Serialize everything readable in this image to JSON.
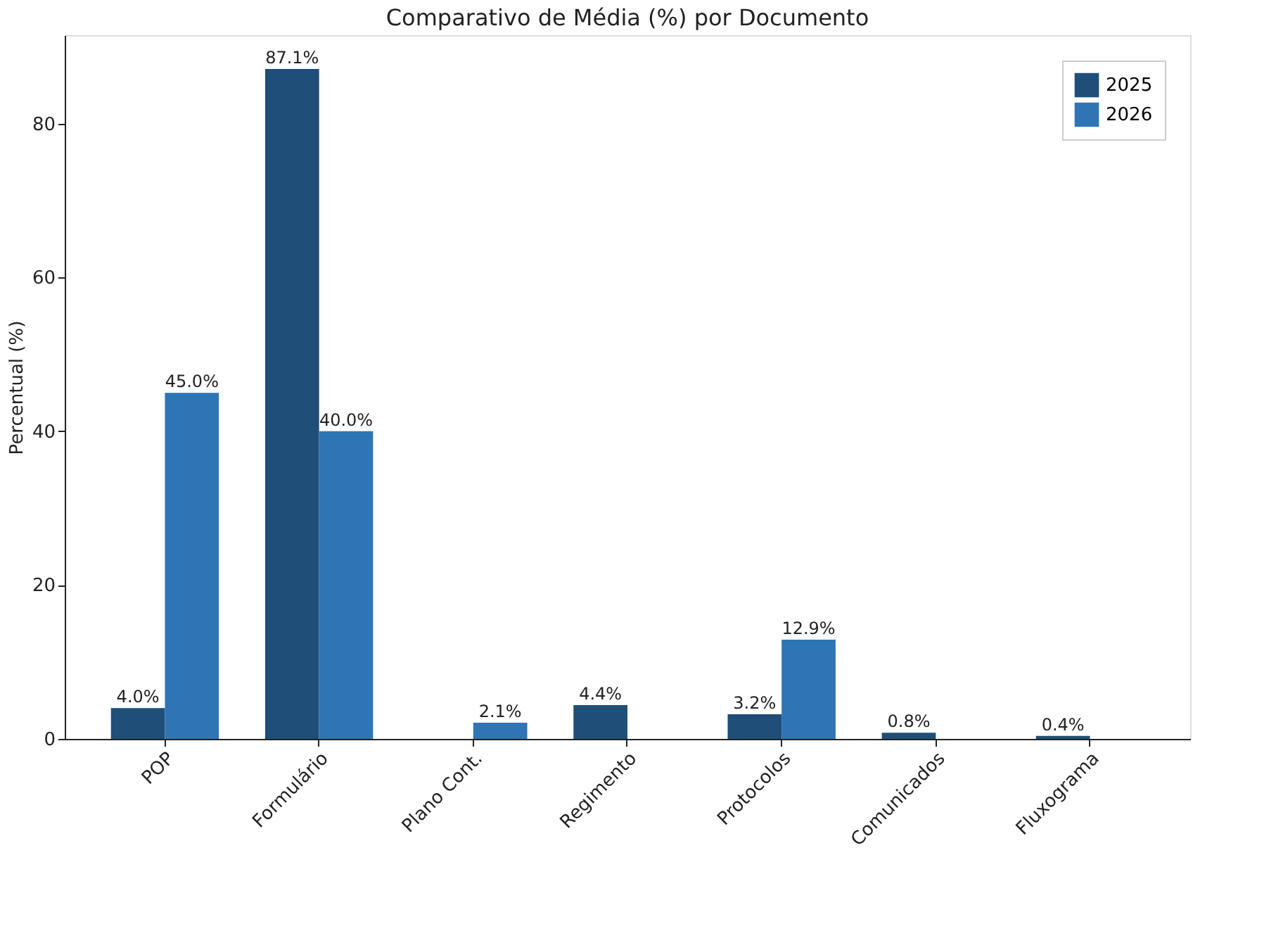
{
  "chart_data": {
    "type": "bar",
    "title": "Comparativo de Média (%) por Documento",
    "ylabel": "Percentual (%)",
    "categories": [
      "POP",
      "Formulário",
      "Plano Cont.",
      "Regimento",
      "Protocolos",
      "Comunicados",
      "Fluxograma"
    ],
    "series": [
      {
        "name": "2025",
        "color": "#1f4e79",
        "values": [
          4.0,
          87.1,
          null,
          4.4,
          3.2,
          0.8,
          0.4
        ],
        "value_labels": [
          "4.0%",
          "87.1%",
          null,
          "4.4%",
          "3.2%",
          "0.8%",
          "0.4%"
        ]
      },
      {
        "name": "2026",
        "color": "#2e75b6",
        "values": [
          45.0,
          40.0,
          2.1,
          null,
          12.9,
          null,
          null
        ],
        "value_labels": [
          "45.0%",
          "40.0%",
          "2.1%",
          null,
          "12.9%",
          null,
          null
        ]
      }
    ],
    "ylim": [
      0,
      91.5
    ],
    "yticks": [
      0,
      20,
      40,
      60,
      80
    ],
    "grid": false,
    "legend": "top right"
  }
}
